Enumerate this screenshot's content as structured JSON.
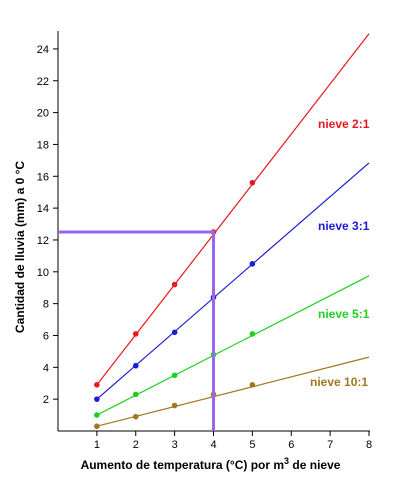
{
  "chart_data": {
    "type": "line",
    "xlabel_main": "Aumento de temperatura (°C) por m",
    "xlabel_sup": "3",
    "xlabel_tail": " de nieve",
    "ylabel": "Cantidad de lluvia (mm) a 0 °C",
    "xlim": [
      0,
      8
    ],
    "ylim": [
      0,
      25
    ],
    "xticks": [
      1,
      2,
      3,
      4,
      5,
      6,
      7,
      8
    ],
    "yticks": [
      2,
      4,
      6,
      8,
      10,
      12,
      14,
      16,
      18,
      20,
      22,
      24
    ],
    "grid": false,
    "series": [
      {
        "name": "nieve 2:1",
        "color": "#e8191e",
        "slope": 3.15,
        "line_x_max": 8,
        "points": [
          [
            1,
            2.9
          ],
          [
            2,
            6.1
          ],
          [
            3,
            9.2
          ],
          [
            4,
            12.5
          ],
          [
            5,
            15.6
          ]
        ]
      },
      {
        "name": "nieve 3:1",
        "color": "#1c1cd6",
        "slope": 2.12,
        "line_x_max": 8,
        "points": [
          [
            1,
            2.0
          ],
          [
            2,
            4.1
          ],
          [
            3,
            6.2
          ],
          [
            4,
            8.4
          ],
          [
            5,
            10.5
          ]
        ]
      },
      {
        "name": "nieve 5:1",
        "color": "#1fd01f",
        "slope": 1.25,
        "line_x_max": 8,
        "points": [
          [
            1,
            1.0
          ],
          [
            2,
            2.3
          ],
          [
            3,
            3.5
          ],
          [
            4,
            4.8
          ],
          [
            5,
            6.1
          ]
        ]
      },
      {
        "name": "nieve 10:1",
        "color": "#a07820",
        "slope": 0.62,
        "line_x_max": 8,
        "points": [
          [
            1,
            0.3
          ],
          [
            2,
            0.9
          ],
          [
            3,
            1.6
          ],
          [
            4,
            2.3
          ],
          [
            5,
            2.9
          ]
        ]
      }
    ],
    "highlight": {
      "color": "#9966ee",
      "x": 4,
      "y": 12.5
    }
  }
}
